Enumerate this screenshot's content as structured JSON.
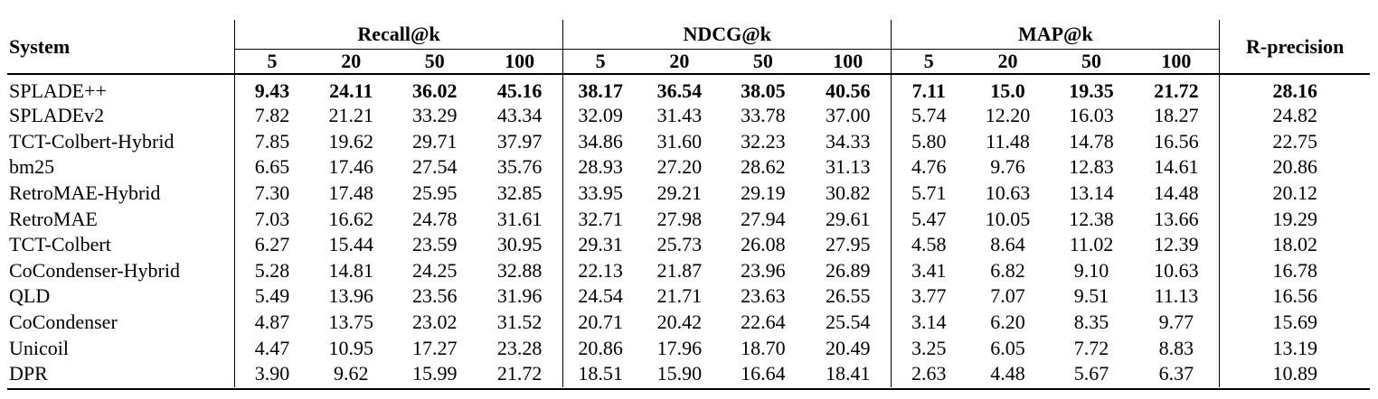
{
  "table": {
    "header": {
      "system": "System",
      "groups": [
        "Recall@k",
        "NDCG@k",
        "MAP@k"
      ],
      "rprecision": "R-precision",
      "ks": [
        "5",
        "20",
        "50",
        "100",
        "5",
        "20",
        "50",
        "100",
        "5",
        "20",
        "50",
        "100"
      ]
    },
    "rows": [
      {
        "name": "SPLADE++",
        "bold": true,
        "values": [
          "9.43",
          "24.11",
          "36.02",
          "45.16",
          "38.17",
          "36.54",
          "38.05",
          "40.56",
          "7.11",
          "15.0",
          "19.35",
          "21.72",
          "28.16"
        ]
      },
      {
        "name": "SPLADEv2",
        "bold": false,
        "values": [
          "7.82",
          "21.21",
          "33.29",
          "43.34",
          "32.09",
          "31.43",
          "33.78",
          "37.00",
          "5.74",
          "12.20",
          "16.03",
          "18.27",
          "24.82"
        ]
      },
      {
        "name": "TCT-Colbert-Hybrid",
        "bold": false,
        "values": [
          "7.85",
          "19.62",
          "29.71",
          "37.97",
          "34.86",
          "31.60",
          "32.23",
          "34.33",
          "5.80",
          "11.48",
          "14.78",
          "16.56",
          "22.75"
        ]
      },
      {
        "name": "bm25",
        "bold": false,
        "values": [
          "6.65",
          "17.46",
          "27.54",
          "35.76",
          "28.93",
          "27.20",
          "28.62",
          "31.13",
          "4.76",
          "9.76",
          "12.83",
          "14.61",
          "20.86"
        ]
      },
      {
        "name": "RetroMAE-Hybrid",
        "bold": false,
        "values": [
          "7.30",
          "17.48",
          "25.95",
          "32.85",
          "33.95",
          "29.21",
          "29.19",
          "30.82",
          "5.71",
          "10.63",
          "13.14",
          "14.48",
          "20.12"
        ]
      },
      {
        "name": "RetroMAE",
        "bold": false,
        "values": [
          "7.03",
          "16.62",
          "24.78",
          "31.61",
          "32.71",
          "27.98",
          "27.94",
          "29.61",
          "5.47",
          "10.05",
          "12.38",
          "13.66",
          "19.29"
        ]
      },
      {
        "name": "TCT-Colbert",
        "bold": false,
        "values": [
          "6.27",
          "15.44",
          "23.59",
          "30.95",
          "29.31",
          "25.73",
          "26.08",
          "27.95",
          "4.58",
          "8.64",
          "11.02",
          "12.39",
          "18.02"
        ]
      },
      {
        "name": "CoCondenser-Hybrid",
        "bold": false,
        "values": [
          "5.28",
          "14.81",
          "24.25",
          "32.88",
          "22.13",
          "21.87",
          "23.96",
          "26.89",
          "3.41",
          "6.82",
          "9.10",
          "10.63",
          "16.78"
        ]
      },
      {
        "name": "QLD",
        "bold": false,
        "values": [
          "5.49",
          "13.96",
          "23.56",
          "31.96",
          "24.54",
          "21.71",
          "23.63",
          "26.55",
          "3.77",
          "7.07",
          "9.51",
          "11.13",
          "16.56"
        ]
      },
      {
        "name": "CoCondenser",
        "bold": false,
        "values": [
          "4.87",
          "13.75",
          "23.02",
          "31.52",
          "20.71",
          "20.42",
          "22.64",
          "25.54",
          "3.14",
          "6.20",
          "8.35",
          "9.77",
          "15.69"
        ]
      },
      {
        "name": "Unicoil",
        "bold": false,
        "values": [
          "4.47",
          "10.95",
          "17.27",
          "23.28",
          "20.86",
          "17.96",
          "18.70",
          "20.49",
          "3.25",
          "6.05",
          "7.72",
          "8.83",
          "13.19"
        ]
      },
      {
        "name": "DPR",
        "bold": false,
        "values": [
          "3.90",
          "9.62",
          "15.99",
          "21.72",
          "18.51",
          "15.90",
          "16.64",
          "18.41",
          "2.63",
          "4.48",
          "5.67",
          "6.37",
          "10.89"
        ]
      }
    ]
  }
}
